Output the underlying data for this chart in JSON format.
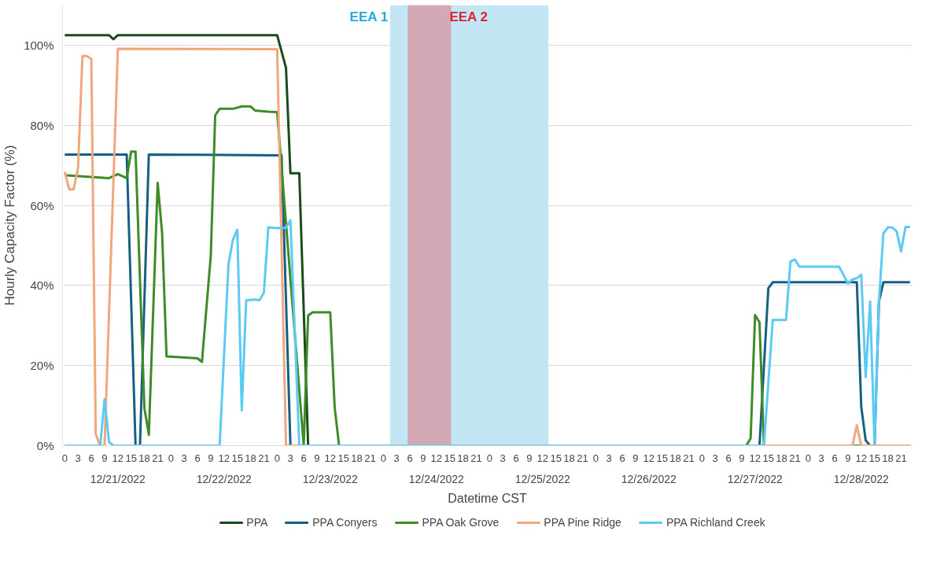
{
  "chart_data": {
    "type": "line",
    "xlabel": "Datetime CST",
    "ylabel": "Hourly Capacity Factor (%)",
    "xlim": [
      "2022-12-20T23:30",
      "2022-12-28T23:30"
    ],
    "ylim": [
      0,
      110
    ],
    "yticks": [
      {
        "value": 0,
        "label": "0%"
      },
      {
        "value": 20,
        "label": "20%"
      },
      {
        "value": 40,
        "label": "40%"
      },
      {
        "value": 60,
        "label": "60%"
      },
      {
        "value": 80,
        "label": "80%"
      },
      {
        "value": 100,
        "label": "100%"
      }
    ],
    "xticks": [
      {
        "value": "2022-12-21T00:00",
        "label": "0"
      },
      {
        "value": "2022-12-21T03:00",
        "label": "3"
      },
      {
        "value": "2022-12-21T06:00",
        "label": "6"
      },
      {
        "value": "2022-12-21T09:00",
        "label": "9"
      },
      {
        "value": "2022-12-21T12:00",
        "label": "12"
      },
      {
        "value": "2022-12-21T15:00",
        "label": "15"
      },
      {
        "value": "2022-12-21T18:00",
        "label": "18"
      },
      {
        "value": "2022-12-21T21:00",
        "label": "21"
      },
      {
        "value": "2022-12-22T00:00",
        "label": "0"
      },
      {
        "value": "2022-12-22T03:00",
        "label": "3"
      },
      {
        "value": "2022-12-22T06:00",
        "label": "6"
      },
      {
        "value": "2022-12-22T09:00",
        "label": "9"
      },
      {
        "value": "2022-12-22T12:00",
        "label": "12"
      },
      {
        "value": "2022-12-22T15:00",
        "label": "15"
      },
      {
        "value": "2022-12-22T18:00",
        "label": "18"
      },
      {
        "value": "2022-12-22T21:00",
        "label": "21"
      },
      {
        "value": "2022-12-23T00:00",
        "label": "0"
      },
      {
        "value": "2022-12-23T03:00",
        "label": "3"
      },
      {
        "value": "2022-12-23T06:00",
        "label": "6"
      },
      {
        "value": "2022-12-23T09:00",
        "label": "9"
      },
      {
        "value": "2022-12-23T12:00",
        "label": "12"
      },
      {
        "value": "2022-12-23T15:00",
        "label": "15"
      },
      {
        "value": "2022-12-23T18:00",
        "label": "18"
      },
      {
        "value": "2022-12-23T21:00",
        "label": "21"
      },
      {
        "value": "2022-12-24T00:00",
        "label": "0"
      },
      {
        "value": "2022-12-24T03:00",
        "label": "3"
      },
      {
        "value": "2022-12-24T06:00",
        "label": "6"
      },
      {
        "value": "2022-12-24T09:00",
        "label": "9"
      },
      {
        "value": "2022-12-24T12:00",
        "label": "12"
      },
      {
        "value": "2022-12-24T15:00",
        "label": "15"
      },
      {
        "value": "2022-12-24T18:00",
        "label": "18"
      },
      {
        "value": "2022-12-24T21:00",
        "label": "21"
      },
      {
        "value": "2022-12-25T00:00",
        "label": "0"
      },
      {
        "value": "2022-12-25T03:00",
        "label": "3"
      },
      {
        "value": "2022-12-25T06:00",
        "label": "6"
      },
      {
        "value": "2022-12-25T09:00",
        "label": "9"
      },
      {
        "value": "2022-12-25T12:00",
        "label": "12"
      },
      {
        "value": "2022-12-25T15:00",
        "label": "15"
      },
      {
        "value": "2022-12-25T18:00",
        "label": "18"
      },
      {
        "value": "2022-12-25T21:00",
        "label": "21"
      },
      {
        "value": "2022-12-26T00:00",
        "label": "0"
      },
      {
        "value": "2022-12-26T03:00",
        "label": "3"
      },
      {
        "value": "2022-12-26T06:00",
        "label": "6"
      },
      {
        "value": "2022-12-26T09:00",
        "label": "9"
      },
      {
        "value": "2022-12-26T12:00",
        "label": "12"
      },
      {
        "value": "2022-12-26T15:00",
        "label": "15"
      },
      {
        "value": "2022-12-26T18:00",
        "label": "18"
      },
      {
        "value": "2022-12-26T21:00",
        "label": "21"
      },
      {
        "value": "2022-12-27T00:00",
        "label": "0"
      },
      {
        "value": "2022-12-27T03:00",
        "label": "3"
      },
      {
        "value": "2022-12-27T06:00",
        "label": "6"
      },
      {
        "value": "2022-12-27T09:00",
        "label": "9"
      },
      {
        "value": "2022-12-27T12:00",
        "label": "12"
      },
      {
        "value": "2022-12-27T15:00",
        "label": "15"
      },
      {
        "value": "2022-12-27T18:00",
        "label": "18"
      },
      {
        "value": "2022-12-27T21:00",
        "label": "21"
      },
      {
        "value": "2022-12-28T00:00",
        "label": "0"
      },
      {
        "value": "2022-12-28T03:00",
        "label": "3"
      },
      {
        "value": "2022-12-28T06:00",
        "label": "6"
      },
      {
        "value": "2022-12-28T09:00",
        "label": "9"
      },
      {
        "value": "2022-12-28T12:00",
        "label": "12"
      },
      {
        "value": "2022-12-28T15:00",
        "label": "15"
      },
      {
        "value": "2022-12-28T18:00",
        "label": "18"
      },
      {
        "value": "2022-12-28T21:00",
        "label": "21"
      }
    ],
    "annotations": [
      "12/21/2022",
      "12/22/2022",
      "12/23/2022",
      "12/24/2022",
      "12/25/2022",
      "12/26/2022",
      "12/27/2022",
      "12/28/2022"
    ],
    "bands": [
      {
        "axis": "x",
        "from": "2022-12-24T01:30",
        "to": "2022-12-25T13:18",
        "label": "EEA 1",
        "color": "#c3e6f4"
      },
      {
        "axis": "x",
        "from": "2022-12-24T05:30",
        "to": "2022-12-24T15:18",
        "label": "EEA 2",
        "color": "#d3a9b5"
      }
    ],
    "grid": "y",
    "legend": "bottom",
    "marker": "none",
    "line_style": "solid",
    "series": [
      {
        "name": "PPA",
        "color": "#1b4a1c",
        "x": [
          "2022-12-21T00:00",
          "2022-12-21T10:00",
          "2022-12-21T11:00",
          "2022-12-21T12:00",
          "2022-12-23T00:00",
          "2022-12-23T02:00",
          "2022-12-23T03:00",
          "2022-12-23T05:00",
          "2022-12-23T07:00",
          "2022-12-28T23:00"
        ],
        "values": [
          102.5,
          102.5,
          101.5,
          102.5,
          102.5,
          94.3,
          68,
          68,
          0,
          0
        ]
      },
      {
        "name": "PPA Conyers",
        "color": "#156082",
        "x": [
          "2022-12-21T00:00",
          "2022-12-21T14:00",
          "2022-12-21T16:00",
          "2022-12-21T17:00",
          "2022-12-21T19:00",
          "2022-12-23T01:00",
          "2022-12-23T03:00",
          "2022-12-27T13:00",
          "2022-12-27T15:00",
          "2022-12-27T16:00",
          "2022-12-28T11:00",
          "2022-12-28T12:00",
          "2022-12-28T13:00",
          "2022-12-28T14:00",
          "2022-12-28T15:00",
          "2022-12-28T16:00",
          "2022-12-28T17:00",
          "2022-12-28T23:00"
        ],
        "values": [
          72.7,
          72.7,
          0,
          0,
          72.7,
          72.5,
          0,
          0,
          39.3,
          40.8,
          40.8,
          9.7,
          1.3,
          0,
          0,
          36,
          40.8,
          40.8
        ]
      },
      {
        "name": "PPA Oak Grove",
        "color": "#3e8b27",
        "x": [
          "2022-12-21T00:00",
          "2022-12-21T10:00",
          "2022-12-21T12:00",
          "2022-12-21T14:00",
          "2022-12-21T15:00",
          "2022-12-21T16:00",
          "2022-12-21T18:00",
          "2022-12-21T19:00",
          "2022-12-21T21:00",
          "2022-12-21T22:00",
          "2022-12-21T23:00",
          "2022-12-22T06:00",
          "2022-12-22T07:00",
          "2022-12-22T09:00",
          "2022-12-22T10:00",
          "2022-12-22T11:00",
          "2022-12-22T14:00",
          "2022-12-22T16:00",
          "2022-12-22T18:00",
          "2022-12-22T19:00",
          "2022-12-22T22:00",
          "2022-12-23T00:00",
          "2022-12-23T06:00",
          "2022-12-23T07:00",
          "2022-12-23T08:00",
          "2022-12-23T12:00",
          "2022-12-23T13:00",
          "2022-12-23T14:00",
          "2022-12-27T10:00",
          "2022-12-27T11:00",
          "2022-12-27T12:00",
          "2022-12-27T13:00",
          "2022-12-27T14:00",
          "2022-12-28T23:00"
        ],
        "values": [
          67.5,
          66.8,
          67.8,
          66.8,
          73.4,
          73.4,
          9.4,
          2.7,
          65.6,
          53.1,
          22.3,
          21.8,
          20.9,
          47.4,
          82.5,
          84.1,
          84.1,
          84.7,
          84.7,
          83.7,
          83.4,
          83.3,
          0,
          32.5,
          33.3,
          33.3,
          9.5,
          0,
          0,
          1.8,
          32.6,
          30.8,
          0,
          0
        ]
      },
      {
        "name": "PPA Pine Ridge",
        "color": "#f1a67c",
        "x": [
          "2022-12-21T00:00",
          "2022-12-21T01:00",
          "2022-12-21T02:00",
          "2022-12-21T03:00",
          "2022-12-21T04:00",
          "2022-12-21T05:00",
          "2022-12-21T06:00",
          "2022-12-21T07:00",
          "2022-12-21T08:00",
          "2022-12-21T09:00",
          "2022-12-21T12:00",
          "2022-12-23T00:00",
          "2022-12-23T02:00",
          "2022-12-28T10:00",
          "2022-12-28T11:00",
          "2022-12-28T12:00",
          "2022-12-28T23:00"
        ],
        "values": [
          68.4,
          64,
          64,
          69.3,
          97.3,
          97.3,
          96.6,
          2.9,
          0,
          0,
          99.1,
          99,
          0,
          0,
          5.1,
          0,
          0
        ]
      },
      {
        "name": "PPA Richland Creek",
        "color": "#5ccaf2",
        "x": [
          "2022-12-21T00:00",
          "2022-12-21T08:00",
          "2022-12-21T09:00",
          "2022-12-21T10:00",
          "2022-12-21T11:00",
          "2022-12-22T11:00",
          "2022-12-22T13:00",
          "2022-12-22T14:00",
          "2022-12-22T15:00",
          "2022-12-22T16:00",
          "2022-12-22T17:00",
          "2022-12-22T19:00",
          "2022-12-22T20:00",
          "2022-12-22T21:00",
          "2022-12-22T22:00",
          "2022-12-23T00:00",
          "2022-12-23T02:00",
          "2022-12-23T03:00",
          "2022-12-23T05:00",
          "2022-12-27T14:00",
          "2022-12-27T16:00",
          "2022-12-27T19:00",
          "2022-12-27T20:00",
          "2022-12-27T21:00",
          "2022-12-27T22:00",
          "2022-12-28T07:00",
          "2022-12-28T09:00",
          "2022-12-28T10:00",
          "2022-12-28T11:00",
          "2022-12-28T12:00",
          "2022-12-28T13:00",
          "2022-12-28T14:00",
          "2022-12-28T15:00",
          "2022-12-28T16:00",
          "2022-12-28T17:00",
          "2022-12-28T18:00",
          "2022-12-28T19:00",
          "2022-12-28T20:00",
          "2022-12-28T21:00",
          "2022-12-28T22:00",
          "2022-12-28T23:00"
        ],
        "values": [
          0,
          0,
          11.6,
          0.9,
          0,
          0,
          45.3,
          51.4,
          53.9,
          8.8,
          36.3,
          36.5,
          36.3,
          38.2,
          54.5,
          54.3,
          54.4,
          56.3,
          0,
          0,
          31.4,
          31.4,
          46,
          46.5,
          44.7,
          44.7,
          40.5,
          41.5,
          41.8,
          42.7,
          17.1,
          36,
          0,
          36,
          53,
          54.5,
          54.5,
          53.5,
          48.5,
          54.6,
          54.6
        ]
      }
    ]
  }
}
